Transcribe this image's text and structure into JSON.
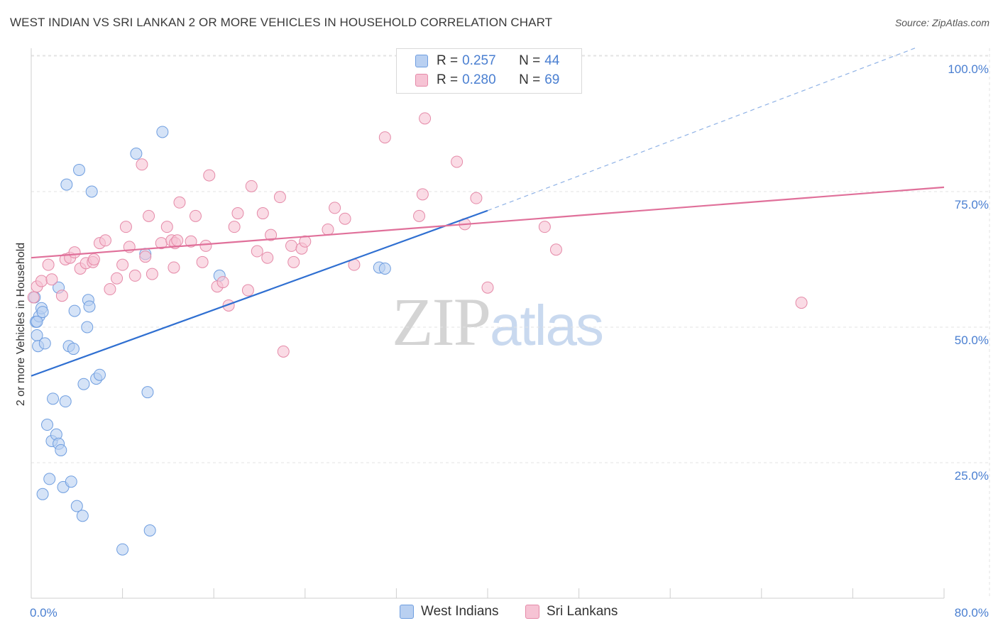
{
  "chart_data": {
    "type": "scatter",
    "title": "WEST INDIAN VS SRI LANKAN 2 OR MORE VEHICLES IN HOUSEHOLD CORRELATION CHART",
    "source": "Source: ZipAtlas.com",
    "xlabel": "",
    "ylabel": "2 or more Vehicles in Household",
    "xlim": [
      0,
      80
    ],
    "ylim": [
      0,
      102
    ],
    "x_tick_labels": [
      {
        "value": 0,
        "label": "0.0%"
      },
      {
        "value": 80,
        "label": "80.0%"
      }
    ],
    "y_tick_labels": [
      {
        "value": 25,
        "label": "25.0%"
      },
      {
        "value": 50,
        "label": "50.0%"
      },
      {
        "value": 75,
        "label": "75.0%"
      },
      {
        "value": 100,
        "label": "100.0%"
      }
    ],
    "grid": true,
    "legend_position": "top-center",
    "series": [
      {
        "name": "West Indians",
        "r_label": "R =",
        "r_value": "0.257",
        "n_label": "N =",
        "n_value": "44",
        "color": "#6f9ee0",
        "fill": "#b9d0f1",
        "points": [
          [
            0.3,
            55.5
          ],
          [
            0.4,
            51.0
          ],
          [
            0.5,
            48.5
          ],
          [
            0.6,
            46.5
          ],
          [
            0.7,
            52.0
          ],
          [
            0.9,
            53.5
          ],
          [
            1.0,
            52.8
          ],
          [
            1.2,
            47.0
          ],
          [
            1.4,
            32.0
          ],
          [
            1.6,
            22.0
          ],
          [
            1.8,
            29.0
          ],
          [
            1.9,
            36.8
          ],
          [
            2.2,
            30.2
          ],
          [
            2.4,
            28.5
          ],
          [
            2.6,
            27.3
          ],
          [
            2.4,
            57.3
          ],
          [
            2.8,
            20.5
          ],
          [
            3.0,
            36.3
          ],
          [
            3.1,
            76.3
          ],
          [
            3.3,
            46.5
          ],
          [
            3.5,
            21.5
          ],
          [
            3.7,
            46.0
          ],
          [
            3.8,
            53.0
          ],
          [
            4.0,
            17.0
          ],
          [
            4.2,
            79.0
          ],
          [
            4.5,
            15.2
          ],
          [
            4.6,
            39.5
          ],
          [
            4.9,
            50.0
          ],
          [
            5.0,
            55.0
          ],
          [
            5.1,
            53.8
          ],
          [
            5.3,
            75.0
          ],
          [
            5.7,
            40.5
          ],
          [
            6.0,
            41.2
          ],
          [
            1.0,
            19.2
          ],
          [
            8.0,
            9.0
          ],
          [
            9.2,
            82.0
          ],
          [
            10.0,
            63.5
          ],
          [
            10.2,
            38.0
          ],
          [
            10.4,
            12.5
          ],
          [
            11.5,
            86.0
          ],
          [
            16.5,
            59.5
          ],
          [
            30.5,
            61.0
          ],
          [
            31.0,
            60.8
          ],
          [
            0.5,
            51.0
          ]
        ],
        "trend": {
          "x0": 0,
          "y0": 41.0,
          "x1": 40,
          "y1": 71.5,
          "dash_to_x": 77.5,
          "dash_to_y": 101.5
        }
      },
      {
        "name": "Sri Lankans",
        "r_label": "R =",
        "r_value": "0.280",
        "n_label": "N =",
        "n_value": "69",
        "color": "#e58aa8",
        "fill": "#f6c3d4",
        "points": [
          [
            0.2,
            55.5
          ],
          [
            0.5,
            57.5
          ],
          [
            0.9,
            58.5
          ],
          [
            1.5,
            61.5
          ],
          [
            1.8,
            58.8
          ],
          [
            2.7,
            55.8
          ],
          [
            3.0,
            62.5
          ],
          [
            3.4,
            62.8
          ],
          [
            3.8,
            63.8
          ],
          [
            4.3,
            60.8
          ],
          [
            4.8,
            61.8
          ],
          [
            5.4,
            62.0
          ],
          [
            6.0,
            65.5
          ],
          [
            6.5,
            66.0
          ],
          [
            6.9,
            57.0
          ],
          [
            7.5,
            59.0
          ],
          [
            8.3,
            68.5
          ],
          [
            8.6,
            64.8
          ],
          [
            9.1,
            59.5
          ],
          [
            9.7,
            80.0
          ],
          [
            10.0,
            63.0
          ],
          [
            10.3,
            70.5
          ],
          [
            10.6,
            59.8
          ],
          [
            11.4,
            65.5
          ],
          [
            11.9,
            68.5
          ],
          [
            12.3,
            66.0
          ],
          [
            12.6,
            65.5
          ],
          [
            12.8,
            66.0
          ],
          [
            13.0,
            73.0
          ],
          [
            14.0,
            65.8
          ],
          [
            14.4,
            70.5
          ],
          [
            15.0,
            62.0
          ],
          [
            15.3,
            65.0
          ],
          [
            15.6,
            78.0
          ],
          [
            16.3,
            57.5
          ],
          [
            16.8,
            58.3
          ],
          [
            17.3,
            54.0
          ],
          [
            17.8,
            68.5
          ],
          [
            18.1,
            71.0
          ],
          [
            19.0,
            56.8
          ],
          [
            19.3,
            76.0
          ],
          [
            19.8,
            64.0
          ],
          [
            20.3,
            71.0
          ],
          [
            20.7,
            62.8
          ],
          [
            21.0,
            67.0
          ],
          [
            21.8,
            74.0
          ],
          [
            22.1,
            45.5
          ],
          [
            22.8,
            65.0
          ],
          [
            23.0,
            62.0
          ],
          [
            23.7,
            64.5
          ],
          [
            24.0,
            65.8
          ],
          [
            26.0,
            68.0
          ],
          [
            26.6,
            72.0
          ],
          [
            27.5,
            70.0
          ],
          [
            28.3,
            61.5
          ],
          [
            31.0,
            85.0
          ],
          [
            34.0,
            70.5
          ],
          [
            34.3,
            74.5
          ],
          [
            34.5,
            88.5
          ],
          [
            37.3,
            80.5
          ],
          [
            38.0,
            69.0
          ],
          [
            39.0,
            73.8
          ],
          [
            40.0,
            57.3
          ],
          [
            45.0,
            68.5
          ],
          [
            46.0,
            64.3
          ],
          [
            67.5,
            54.5
          ],
          [
            12.5,
            61.0
          ],
          [
            8.0,
            61.5
          ],
          [
            5.5,
            62.5
          ]
        ],
        "trend": {
          "x0": 0,
          "y0": 62.8,
          "x1": 80,
          "y1": 75.8
        }
      }
    ]
  },
  "watermark": {
    "zip": "ZIP",
    "atlas": "atlas"
  }
}
